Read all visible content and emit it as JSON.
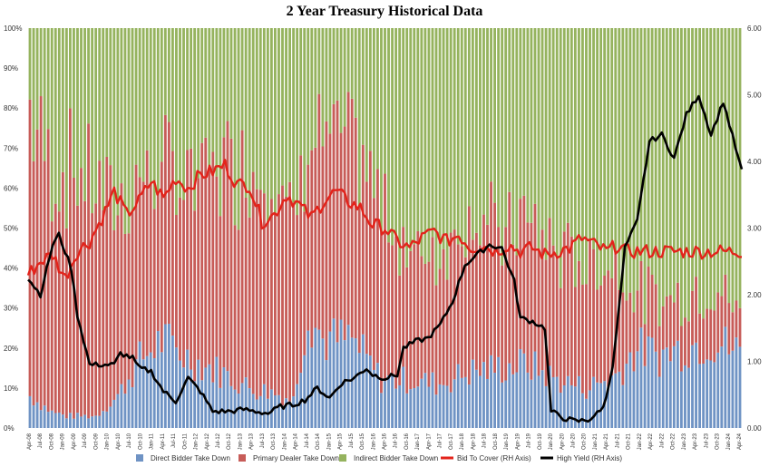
{
  "chart_data": {
    "type": "bar",
    "title": "2 Year Treasury  Historical Data",
    "stacked_percent": true,
    "y_left": {
      "min": 0,
      "max": 100,
      "ticks": [
        "0%",
        "10%",
        "20%",
        "30%",
        "40%",
        "50%",
        "60%",
        "70%",
        "80%",
        "90%",
        "100%"
      ]
    },
    "y_right": {
      "min": 0,
      "max": 6,
      "ticks": [
        "0.00",
        "1.00",
        "2.00",
        "3.00",
        "4.00",
        "5.00",
        "6.00"
      ]
    },
    "x_tick_labels": [
      "Apr-08",
      "Jul-08",
      "Oct-08",
      "Jan-09",
      "Apr-09",
      "Jul-09",
      "Oct-09",
      "Jan-10",
      "Apr-10",
      "Jul-10",
      "Oct-10",
      "Jan-11",
      "Apr-11",
      "Jul-11",
      "Oct-11",
      "Jan-12",
      "Apr-12",
      "Jul-12",
      "Oct-12",
      "Jan-13",
      "Apr-13",
      "Jul-13",
      "Oct-13",
      "Jan-14",
      "Apr-14",
      "Jul-14",
      "Oct-14",
      "Jan-15",
      "Apr-15",
      "Jul-15",
      "Oct-15",
      "Jan-16",
      "Apr-16",
      "Jul-16",
      "Oct-16",
      "Jan-17",
      "Apr-17",
      "Jul-17",
      "Oct-17",
      "Jan-18",
      "Apr-18",
      "Jul-18",
      "Oct-18",
      "Jan-19",
      "Apr-19",
      "Jul-19",
      "Oct-19",
      "Jan-20",
      "Apr-20",
      "Jul-20",
      "Oct-20",
      "Jan-21",
      "Apr-21",
      "Jul-21",
      "Oct-21",
      "Jan-22",
      "Apr-22",
      "Jul-22",
      "Oct-22",
      "Jan-23",
      "Apr-23",
      "Jul-23",
      "Oct-23",
      "Jan-24",
      "Apr-24"
    ],
    "n_bars": 195,
    "direct_pct_anchors": [
      [
        0,
        8
      ],
      [
        6,
        4
      ],
      [
        10,
        3
      ],
      [
        18,
        3
      ],
      [
        24,
        8
      ],
      [
        30,
        17
      ],
      [
        36,
        22
      ],
      [
        44,
        17
      ],
      [
        52,
        14
      ],
      [
        60,
        10
      ],
      [
        66,
        9
      ],
      [
        72,
        7
      ],
      [
        76,
        30
      ],
      [
        80,
        22
      ],
      [
        88,
        22
      ],
      [
        96,
        12
      ],
      [
        104,
        12
      ],
      [
        112,
        11
      ],
      [
        120,
        14
      ],
      [
        128,
        15
      ],
      [
        136,
        16
      ],
      [
        144,
        12
      ],
      [
        152,
        10
      ],
      [
        160,
        13
      ],
      [
        166,
        20
      ],
      [
        172,
        18
      ],
      [
        178,
        20
      ],
      [
        186,
        22
      ],
      [
        194,
        19
      ]
    ],
    "dealer_pct_anchors": [
      [
        0,
        72
      ],
      [
        6,
        60
      ],
      [
        12,
        62
      ],
      [
        18,
        58
      ],
      [
        24,
        47
      ],
      [
        30,
        45
      ],
      [
        36,
        42
      ],
      [
        44,
        45
      ],
      [
        52,
        52
      ],
      [
        60,
        55
      ],
      [
        66,
        60
      ],
      [
        70,
        45
      ],
      [
        76,
        46
      ],
      [
        80,
        50
      ],
      [
        88,
        48
      ],
      [
        96,
        43
      ],
      [
        104,
        32
      ],
      [
        112,
        33
      ],
      [
        120,
        40
      ],
      [
        128,
        34
      ],
      [
        136,
        36
      ],
      [
        144,
        32
      ],
      [
        152,
        31
      ],
      [
        160,
        28
      ],
      [
        166,
        14
      ],
      [
        172,
        14
      ],
      [
        178,
        13
      ],
      [
        186,
        14
      ],
      [
        194,
        10
      ]
    ],
    "bid_to_cover_anchors": [
      [
        0,
        2.3
      ],
      [
        4,
        2.5
      ],
      [
        8,
        2.6
      ],
      [
        12,
        2.25
      ],
      [
        16,
        2.65
      ],
      [
        20,
        2.8
      ],
      [
        24,
        3.15
      ],
      [
        28,
        3.55
      ],
      [
        32,
        3.2
      ],
      [
        36,
        3.4
      ],
      [
        40,
        3.7
      ],
      [
        44,
        3.45
      ],
      [
        48,
        3.75
      ],
      [
        52,
        3.6
      ],
      [
        56,
        3.8
      ],
      [
        60,
        3.85
      ],
      [
        64,
        3.95
      ],
      [
        68,
        3.65
      ],
      [
        72,
        3.65
      ],
      [
        76,
        3.1
      ],
      [
        80,
        3.2
      ],
      [
        84,
        3.5
      ],
      [
        88,
        3.35
      ],
      [
        92,
        3.15
      ],
      [
        96,
        3.4
      ],
      [
        100,
        3.55
      ],
      [
        104,
        3.4
      ],
      [
        108,
        3.3
      ],
      [
        112,
        3.05
      ],
      [
        116,
        3.0
      ],
      [
        120,
        2.8
      ],
      [
        124,
        2.7
      ],
      [
        128,
        2.85
      ],
      [
        132,
        2.95
      ],
      [
        136,
        2.8
      ],
      [
        140,
        2.9
      ],
      [
        144,
        2.7
      ],
      [
        148,
        2.75
      ],
      [
        152,
        2.65
      ],
      [
        156,
        2.75
      ],
      [
        160,
        2.65
      ],
      [
        164,
        2.7
      ],
      [
        168,
        2.6
      ],
      [
        172,
        2.65
      ],
      [
        176,
        2.7
      ],
      [
        180,
        2.85
      ],
      [
        184,
        2.75
      ],
      [
        188,
        2.65
      ],
      [
        192,
        2.75
      ],
      [
        194,
        2.65
      ]
    ],
    "high_yield_anchors": [
      [
        0,
        2.25
      ],
      [
        4,
        2.0
      ],
      [
        8,
        2.75
      ],
      [
        10,
        2.9
      ],
      [
        14,
        2.4
      ],
      [
        16,
        1.7
      ],
      [
        20,
        0.95
      ],
      [
        24,
        0.95
      ],
      [
        28,
        0.95
      ],
      [
        30,
        1.12
      ],
      [
        34,
        1.05
      ],
      [
        36,
        0.9
      ],
      [
        40,
        0.85
      ],
      [
        44,
        0.55
      ],
      [
        48,
        0.4
      ],
      [
        52,
        0.75
      ],
      [
        56,
        0.55
      ],
      [
        60,
        0.25
      ],
      [
        66,
        0.25
      ],
      [
        70,
        0.28
      ],
      [
        74,
        0.25
      ],
      [
        78,
        0.22
      ],
      [
        82,
        0.32
      ],
      [
        86,
        0.35
      ],
      [
        90,
        0.42
      ],
      [
        94,
        0.6
      ],
      [
        98,
        0.45
      ],
      [
        102,
        0.68
      ],
      [
        106,
        0.75
      ],
      [
        110,
        0.9
      ],
      [
        112,
        0.8
      ],
      [
        116,
        0.75
      ],
      [
        120,
        0.8
      ],
      [
        122,
        1.2
      ],
      [
        126,
        1.3
      ],
      [
        130,
        1.35
      ],
      [
        134,
        1.55
      ],
      [
        138,
        1.9
      ],
      [
        142,
        2.45
      ],
      [
        146,
        2.6
      ],
      [
        150,
        2.75
      ],
      [
        154,
        2.7
      ],
      [
        158,
        2.2
      ],
      [
        160,
        1.65
      ],
      [
        164,
        1.6
      ],
      [
        168,
        1.5
      ],
      [
        170,
        0.25
      ],
      [
        174,
        0.15
      ],
      [
        178,
        0.1
      ],
      [
        182,
        0.12
      ],
      [
        186,
        0.25
      ],
      [
        188,
        0.45
      ],
      [
        190,
        0.95
      ],
      [
        192,
        1.75
      ],
      [
        194,
        2.7
      ]
    ],
    "extra_zoom_anchors": [
      [
        194,
        2.7
      ],
      [
        198,
        3.1
      ],
      [
        202,
        4.3
      ],
      [
        206,
        4.4
      ],
      [
        210,
        4.05
      ],
      [
        214,
        4.7
      ],
      [
        218,
        5.0
      ],
      [
        222,
        4.4
      ],
      [
        226,
        4.9
      ],
      [
        230,
        4.2
      ],
      [
        232,
        3.85
      ]
    ],
    "series": [
      {
        "name": "Direct Bidder Take Down",
        "color": "#6f93c4"
      },
      {
        "name": "Primary Dealer Take Down",
        "color": "#c75c58"
      },
      {
        "name": "Indirect Bidder Take Down",
        "color": "#95b35e"
      },
      {
        "name": "Bid To Cover (RH Axis)",
        "color": "#e3231b"
      },
      {
        "name": "High Yield (RH Axis)",
        "color": "#000000"
      }
    ]
  }
}
